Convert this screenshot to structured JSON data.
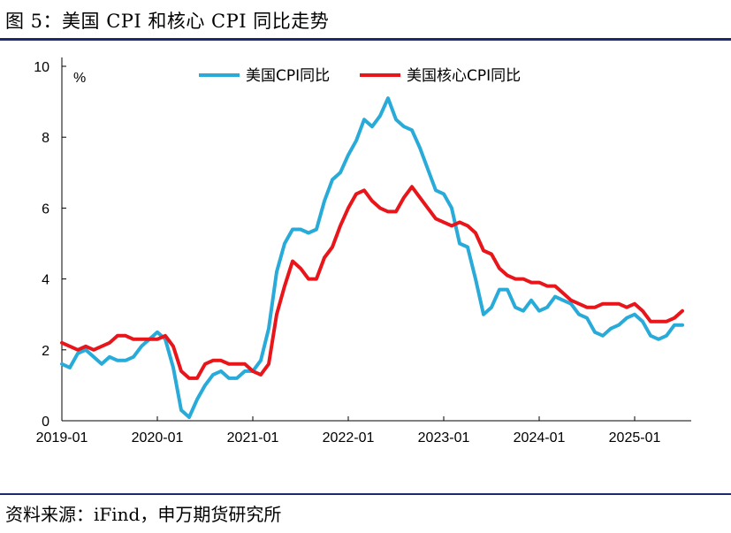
{
  "header": {
    "title": "图 5：美国 CPI 和核心 CPI 同比走势"
  },
  "footer": {
    "source": "资料来源：iFind，申万期货研究所"
  },
  "chart_data": {
    "type": "line",
    "unit": "%",
    "ylim": [
      0,
      10
    ],
    "yticks": [
      0,
      2,
      4,
      6,
      8,
      10
    ],
    "xtick_labels": [
      "2019-01",
      "2020-01",
      "2021-01",
      "2022-01",
      "2023-01",
      "2024-01",
      "2025-01"
    ],
    "legend_position": "top",
    "x": [
      "2019-01",
      "2019-02",
      "2019-03",
      "2019-04",
      "2019-05",
      "2019-06",
      "2019-07",
      "2019-08",
      "2019-09",
      "2019-10",
      "2019-11",
      "2019-12",
      "2020-01",
      "2020-02",
      "2020-03",
      "2020-04",
      "2020-05",
      "2020-06",
      "2020-07",
      "2020-08",
      "2020-09",
      "2020-10",
      "2020-11",
      "2020-12",
      "2021-01",
      "2021-02",
      "2021-03",
      "2021-04",
      "2021-05",
      "2021-06",
      "2021-07",
      "2021-08",
      "2021-09",
      "2021-10",
      "2021-11",
      "2021-12",
      "2022-01",
      "2022-02",
      "2022-03",
      "2022-04",
      "2022-05",
      "2022-06",
      "2022-07",
      "2022-08",
      "2022-09",
      "2022-10",
      "2022-11",
      "2022-12",
      "2023-01",
      "2023-02",
      "2023-03",
      "2023-04",
      "2023-05",
      "2023-06",
      "2023-07",
      "2023-08",
      "2023-09",
      "2023-10",
      "2023-11",
      "2023-12",
      "2024-01",
      "2024-02",
      "2024-03",
      "2024-04",
      "2024-05",
      "2024-06",
      "2024-07",
      "2024-08",
      "2024-09",
      "2024-10",
      "2024-11",
      "2024-12",
      "2025-01",
      "2025-02",
      "2025-03",
      "2025-04",
      "2025-05",
      "2025-06",
      "2025-07"
    ],
    "series": [
      {
        "name": "美国CPI同比",
        "color": "#29abd9",
        "values": [
          1.6,
          1.5,
          1.9,
          2.0,
          1.8,
          1.6,
          1.8,
          1.7,
          1.7,
          1.8,
          2.1,
          2.3,
          2.5,
          2.3,
          1.5,
          0.3,
          0.1,
          0.6,
          1.0,
          1.3,
          1.4,
          1.2,
          1.2,
          1.4,
          1.4,
          1.7,
          2.6,
          4.2,
          5.0,
          5.4,
          5.4,
          5.3,
          5.4,
          6.2,
          6.8,
          7.0,
          7.5,
          7.9,
          8.5,
          8.3,
          8.6,
          9.1,
          8.5,
          8.3,
          8.2,
          7.7,
          7.1,
          6.5,
          6.4,
          6.0,
          5.0,
          4.9,
          4.0,
          3.0,
          3.2,
          3.7,
          3.7,
          3.2,
          3.1,
          3.4,
          3.1,
          3.2,
          3.5,
          3.4,
          3.3,
          3.0,
          2.9,
          2.5,
          2.4,
          2.6,
          2.7,
          2.9,
          3.0,
          2.8,
          2.4,
          2.3,
          2.4,
          2.7,
          2.7
        ]
      },
      {
        "name": "美国核心CPI同比",
        "color": "#e8161b",
        "values": [
          2.2,
          2.1,
          2.0,
          2.1,
          2.0,
          2.1,
          2.2,
          2.4,
          2.4,
          2.3,
          2.3,
          2.3,
          2.3,
          2.4,
          2.1,
          1.4,
          1.2,
          1.2,
          1.6,
          1.7,
          1.7,
          1.6,
          1.6,
          1.6,
          1.4,
          1.3,
          1.6,
          3.0,
          3.8,
          4.5,
          4.3,
          4.0,
          4.0,
          4.6,
          4.9,
          5.5,
          6.0,
          6.4,
          6.5,
          6.2,
          6.0,
          5.9,
          5.9,
          6.3,
          6.6,
          6.3,
          6.0,
          5.7,
          5.6,
          5.5,
          5.6,
          5.5,
          5.3,
          4.8,
          4.7,
          4.3,
          4.1,
          4.0,
          4.0,
          3.9,
          3.9,
          3.8,
          3.8,
          3.6,
          3.4,
          3.3,
          3.2,
          3.2,
          3.3,
          3.3,
          3.3,
          3.2,
          3.3,
          3.1,
          2.8,
          2.8,
          2.8,
          2.9,
          3.1
        ]
      }
    ]
  }
}
